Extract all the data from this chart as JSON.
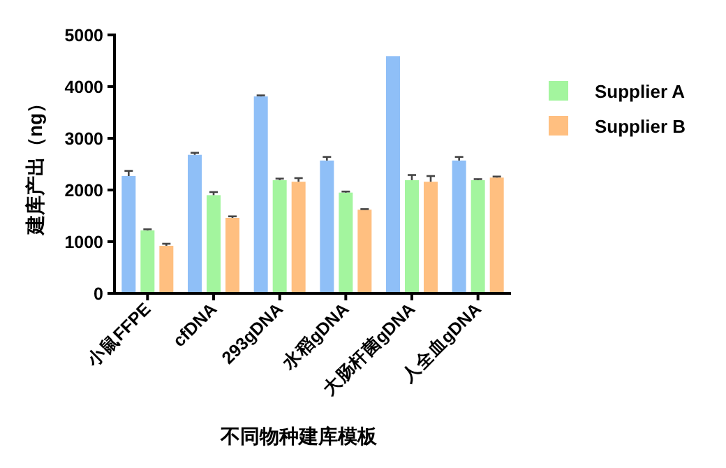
{
  "chart_data": {
    "type": "bar",
    "xlabel": "不同物种建库模板",
    "ylabel": "建库产出（ng）",
    "categories": [
      "小鼠FFPE",
      "cfDNA",
      "293gDNA",
      "水稻gDNA",
      "大肠杆菌gDNA",
      "人全血gDNA"
    ],
    "ylim": [
      0,
      5000
    ],
    "yticks": [
      0,
      1000,
      2000,
      3000,
      4000,
      5000
    ],
    "legend": "top right",
    "series": [
      {
        "color": "#8fbff7",
        "values": [
          2270,
          2680,
          3810,
          2570,
          4590,
          2570
        ],
        "errors": [
          100,
          40,
          20,
          70,
          null,
          70
        ]
      },
      {
        "name": "Supplier A",
        "color": "#a3f59e",
        "values": [
          1220,
          1900,
          2190,
          1950,
          2190,
          2190
        ],
        "errors": [
          20,
          60,
          30,
          20,
          100,
          20
        ]
      },
      {
        "name": "Supplier B",
        "color": "#ffbf80",
        "values": [
          920,
          1460,
          2160,
          1620,
          2160,
          2240
        ],
        "errors": [
          40,
          30,
          70,
          10,
          110,
          20
        ]
      }
    ]
  }
}
